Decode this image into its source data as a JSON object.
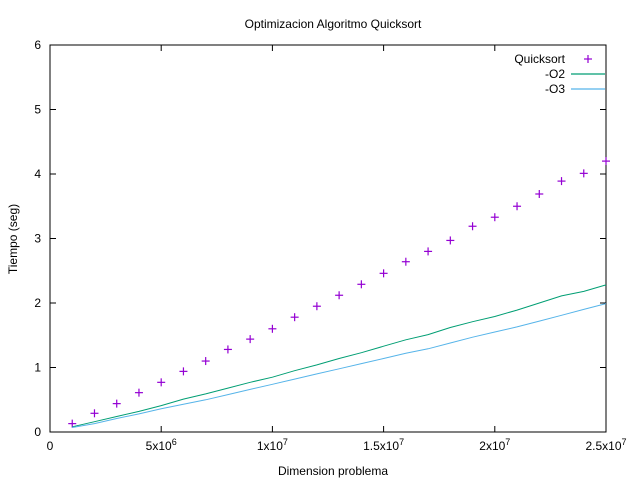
{
  "chart_data": {
    "type": "line",
    "title": "Optimizacion Algoritmo Quicksort",
    "xlabel": "Dimension problema",
    "ylabel": "Tiempo (seg)",
    "xlim": [
      0,
      25000000
    ],
    "ylim": [
      0,
      6
    ],
    "x_ticks": [
      {
        "value": 0,
        "label": "0",
        "exp": ""
      },
      {
        "value": 5000000,
        "label": "5x10",
        "exp": "6"
      },
      {
        "value": 10000000,
        "label": "1x10",
        "exp": "7"
      },
      {
        "value": 15000000,
        "label": "1.5x10",
        "exp": "7"
      },
      {
        "value": 20000000,
        "label": "2x10",
        "exp": "7"
      },
      {
        "value": 25000000,
        "label": "2.5x10",
        "exp": "7"
      }
    ],
    "y_ticks": [
      {
        "value": 0,
        "label": "0"
      },
      {
        "value": 1,
        "label": "1"
      },
      {
        "value": 2,
        "label": "2"
      },
      {
        "value": 3,
        "label": "3"
      },
      {
        "value": 4,
        "label": "4"
      },
      {
        "value": 5,
        "label": "5"
      },
      {
        "value": 6,
        "label": "6"
      }
    ],
    "grid": false,
    "legend_position": "top-right",
    "x": [
      1000000,
      2000000,
      3000000,
      4000000,
      5000000,
      6000000,
      7000000,
      8000000,
      9000000,
      10000000,
      11000000,
      12000000,
      13000000,
      14000000,
      15000000,
      16000000,
      17000000,
      18000000,
      19000000,
      20000000,
      21000000,
      22000000,
      23000000,
      24000000,
      25000000
    ],
    "series": [
      {
        "name": "Quicksort",
        "style": "points",
        "marker": "plus",
        "color": "#9400d3",
        "values": [
          0.13,
          0.29,
          0.44,
          0.61,
          0.77,
          0.94,
          1.1,
          1.28,
          1.44,
          1.6,
          1.78,
          1.95,
          2.12,
          2.29,
          2.46,
          2.64,
          2.8,
          2.97,
          3.19,
          3.33,
          3.5,
          3.69,
          3.89,
          4.01,
          4.2
        ]
      },
      {
        "name": "-O2",
        "style": "line",
        "color": "#009e73",
        "values": [
          0.08,
          0.16,
          0.24,
          0.32,
          0.41,
          0.51,
          0.59,
          0.68,
          0.77,
          0.85,
          0.95,
          1.04,
          1.14,
          1.23,
          1.33,
          1.43,
          1.51,
          1.62,
          1.71,
          1.79,
          1.89,
          2.0,
          2.11,
          2.18,
          2.28
        ]
      },
      {
        "name": "-O3",
        "style": "line",
        "color": "#56b4e9",
        "values": [
          0.07,
          0.13,
          0.21,
          0.28,
          0.36,
          0.43,
          0.5,
          0.58,
          0.66,
          0.74,
          0.82,
          0.9,
          0.98,
          1.06,
          1.14,
          1.22,
          1.29,
          1.38,
          1.47,
          1.55,
          1.63,
          1.72,
          1.81,
          1.9,
          1.99
        ]
      }
    ]
  }
}
